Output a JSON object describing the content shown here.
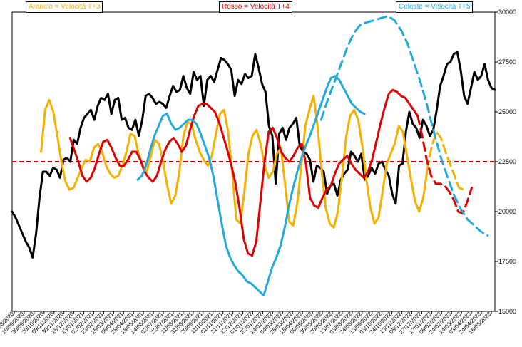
{
  "chart_data": {
    "type": "line",
    "y_axis_side": "right",
    "ylim": [
      15000,
      30000
    ],
    "y_ticks": [
      15000,
      17500,
      20000,
      22500,
      25000,
      27500,
      30000
    ],
    "x_tick_labels": [
      "21/08/2020",
      "10/09/2020",
      "30/09/2020",
      "20/10/2020",
      "09/11/2020",
      "30/11/2020",
      "18/12/2020",
      "13/01/2021",
      "02/02/2021",
      "23/02/2021",
      "15/03/2021",
      "06/04/2021",
      "28/04/2021",
      "18/05/2021",
      "14/06/2021",
      "02/07/2021",
      "22/07/2021",
      "11/08/2021",
      "31/08/2021",
      "20/09/2021",
      "11/10/2021",
      "01/11/2021",
      "21/11/2021",
      "12/12/2021",
      "01/01/2022",
      "22/01/2022",
      "14/02/2022",
      "04/03/2022",
      "25/03/2022",
      "15/04/2022",
      "09/05/2022",
      "30/05/2022",
      "20/06/2022",
      "13/07/2022",
      "03/08/2022",
      "24/08/2022",
      "13/09/2022",
      "03/10/2022",
      "24/10/2022",
      "13/11/2022",
      "05/12/2022",
      "27/12/2022",
      "17/01/2023",
      "06/02/2023",
      "24/02/2023",
      "14/03/2023",
      "03/04/2023",
      "24/04/2023",
      "16/05/2023"
    ],
    "reference_line": {
      "value": 22500,
      "color": "#dd0000",
      "style": "dashed"
    },
    "legend": [
      {
        "label": "Arancio = Velocità T+3",
        "color": "#f5b000",
        "position": "top-left"
      },
      {
        "label": "Rosso = Velocità T+4",
        "color": "#e00000",
        "position": "top-center"
      },
      {
        "label": "Celeste = Velocità T+5",
        "color": "#22aadd",
        "position": "top-right"
      }
    ],
    "series": [
      {
        "role": "index",
        "color": "#000000",
        "style": "solid",
        "xrange": [
          0,
          1
        ],
        "values": [
          20000,
          19700,
          19300,
          18900,
          18500,
          18200,
          17700,
          18900,
          20700,
          22000,
          22000,
          21800,
          22200,
          22100,
          21700,
          22600,
          22700,
          22500,
          23600,
          23400,
          24200,
          24700,
          24900,
          25100,
          24600,
          25300,
          25700,
          25600,
          25900,
          24900,
          25600,
          25700,
          24600,
          24700,
          24200,
          24100,
          24600,
          23800,
          24600,
          25800,
          25900,
          25700,
          25400,
          25500,
          25400,
          25200,
          25800,
          26300,
          26000,
          26100,
          26800,
          26200,
          25900,
          27000,
          26600,
          26800,
          25300,
          26600,
          26800,
          26500,
          27100,
          27700,
          27600,
          27400,
          27100,
          25800,
          26600,
          26400,
          26900,
          26700,
          26800,
          27900,
          27200,
          26400,
          26000,
          24300,
          23800,
          21400,
          23900,
          24200,
          23600,
          24200,
          24400,
          24700,
          23300,
          23000,
          22900,
          22600,
          21500,
          22300,
          22200,
          22000,
          20900,
          21300,
          21400,
          20800,
          21600,
          21900,
          22100,
          23000,
          22800,
          22500,
          22900,
          21600,
          21800,
          22200,
          21900,
          22400,
          22500,
          22100,
          21800,
          20900,
          20400,
          22300,
          22400,
          24000,
          25000,
          24400,
          24200,
          23700,
          24600,
          24300,
          23800,
          24100,
          25100,
          26300,
          26800,
          27400,
          27500,
          27900,
          28000,
          27100,
          25800,
          25400,
          26200,
          27000,
          26600,
          26800,
          27400,
          26600,
          26200,
          26100
        ]
      },
      {
        "role": "T+3",
        "color": "#f5b000",
        "style": "solid",
        "xrange": [
          0.06,
          0.86
        ],
        "values": [
          23000,
          25100,
          25600,
          25000,
          23800,
          22500,
          21500,
          21100,
          21200,
          21700,
          22200,
          22600,
          22500,
          23200,
          23400,
          23000,
          22300,
          21900,
          21700,
          21800,
          22300,
          23000,
          23900,
          23800,
          22900,
          22300,
          22000,
          22800,
          23600,
          23400,
          22500,
          21300,
          20400,
          20800,
          22000,
          23800,
          24500,
          24400,
          23600,
          23000,
          22600,
          22300,
          22800,
          23900,
          24900,
          25100,
          24000,
          22000,
          19600,
          19400,
          21000,
          22900,
          23800,
          24100,
          23400,
          22300,
          21700,
          22000,
          22900,
          23200,
          21400,
          19500,
          19300,
          20400,
          22300,
          24300,
          25100,
          25800,
          24300,
          22100,
          20200,
          19400,
          19200,
          20000,
          21700,
          23700,
          24800,
          25100,
          24600,
          23300,
          21600,
          20200,
          19400,
          19700,
          21000,
          22400,
          22900,
          23400,
          24300,
          24000,
          22800,
          21600,
          20500,
          20000,
          20700,
          22100
        ]
      },
      {
        "role": "T+3",
        "color": "#f5b000",
        "style": "dashed",
        "xrange": [
          0.86,
          0.935
        ],
        "values": [
          22100,
          23300,
          24000,
          23700,
          23000,
          22400,
          21800,
          21200,
          21100
        ]
      },
      {
        "role": "T+4",
        "color": "#e00000",
        "style": "solid",
        "xrange": [
          0.12,
          0.84
        ],
        "values": [
          23700,
          23100,
          22500,
          21800,
          21500,
          21700,
          22200,
          22900,
          23500,
          23600,
          23200,
          22700,
          22300,
          22300,
          22600,
          23000,
          23000,
          22600,
          22000,
          21700,
          21500,
          21800,
          22500,
          23100,
          23500,
          23700,
          23400,
          23000,
          23300,
          24100,
          24800,
          25300,
          25400,
          25400,
          25200,
          25000,
          24500,
          23800,
          23100,
          22300,
          21400,
          20100,
          18600,
          17900,
          17800,
          18500,
          20500,
          22500,
          24000,
          24200,
          23700,
          23000,
          22700,
          22500,
          22800,
          23200,
          23400,
          22400,
          20700,
          20300,
          20200,
          20700,
          21100,
          21300,
          21900,
          22400,
          22600,
          22800,
          22400,
          22100,
          21900,
          21700,
          22000,
          22600,
          23500,
          24400,
          25200,
          25900,
          26100,
          26000,
          25800,
          25700,
          25400,
          25100,
          24800
        ]
      },
      {
        "role": "T+4",
        "color": "#e00000",
        "style": "dashed",
        "xrange": [
          0.84,
          0.952
        ],
        "values": [
          24800,
          23800,
          22600,
          21800,
          21400,
          21400,
          21300,
          21000,
          20600,
          20000,
          19900,
          20500,
          21200
        ]
      },
      {
        "role": "T+5",
        "color": "#22aadd",
        "style": "solid",
        "xrange": [
          0.26,
          0.73
        ],
        "values": [
          21600,
          21800,
          22300,
          23100,
          23800,
          24300,
          24800,
          24900,
          24400,
          24100,
          24200,
          24400,
          24600,
          24600,
          24400,
          23900,
          23300,
          22700,
          21800,
          20600,
          19400,
          18300,
          17700,
          17300,
          17000,
          16800,
          16500,
          16400,
          16200,
          16000,
          15800,
          16500,
          17200,
          17700,
          18300,
          19200,
          20300,
          21200,
          22000,
          22700,
          23300,
          23800,
          24400,
          25000,
          25600,
          26200,
          26700,
          26800,
          26600,
          26200,
          25800,
          25400,
          25200,
          25000,
          24900
        ]
      },
      {
        "role": "T+5",
        "color": "#22aadd",
        "style": "dashed",
        "xrange": [
          0.64,
          0.985
        ],
        "values": [
          24600,
          25600,
          26500,
          27400,
          28300,
          29000,
          29400,
          29500,
          29600,
          29700,
          29800,
          29600,
          29100,
          28400,
          27400,
          26400,
          25200,
          23900,
          22700,
          21700,
          20800,
          20100,
          19600,
          19300,
          19000,
          18800
        ]
      }
    ]
  }
}
